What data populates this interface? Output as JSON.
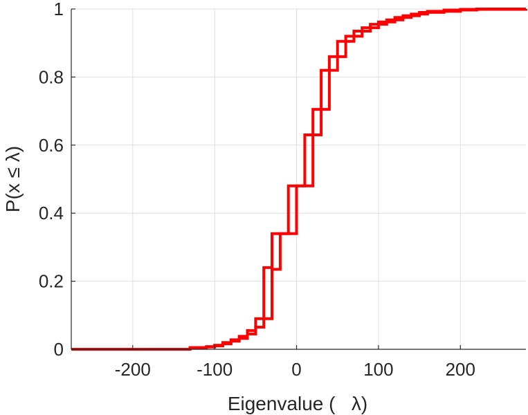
{
  "chart_data": {
    "type": "line",
    "title": "",
    "xlabel": "Eigenvalue (   λ)",
    "ylabel": "P(x ≤ λ)",
    "xlim": [
      -275,
      280
    ],
    "ylim": [
      0,
      1
    ],
    "xticks": [
      -200,
      -100,
      0,
      100,
      200
    ],
    "xtick_labels": [
      "-200",
      "-100",
      "0",
      "100",
      "200"
    ],
    "yticks": [
      0,
      0.2,
      0.4,
      0.6,
      0.8,
      1
    ],
    "ytick_labels": [
      "0",
      "0.2",
      "0.4",
      "0.6",
      "0.8",
      "1"
    ],
    "grid": true,
    "legend": "none",
    "series": [
      {
        "color": "#ff0000",
        "style": "step",
        "x": [
          -275,
          -180,
          -130,
          -110,
          -100,
          -90,
          -80,
          -70,
          -60,
          -50,
          -40,
          -30,
          -10,
          10,
          30,
          50,
          70,
          90,
          110,
          130,
          150,
          180,
          220,
          280
        ],
        "y": [
          0.0,
          0.0,
          0.005,
          0.008,
          0.012,
          0.02,
          0.028,
          0.038,
          0.055,
          0.09,
          0.24,
          0.34,
          0.48,
          0.63,
          0.82,
          0.905,
          0.935,
          0.955,
          0.968,
          0.98,
          0.99,
          0.997,
          1.0,
          1.0
        ]
      },
      {
        "color": "#ff0000",
        "style": "step",
        "x": [
          -275,
          -180,
          -130,
          -110,
          -100,
          -90,
          -80,
          -70,
          -60,
          -50,
          -40,
          -30,
          -20,
          0,
          20,
          40,
          60,
          80,
          100,
          120,
          140,
          160,
          200,
          280
        ],
        "y": [
          0.0,
          0.0,
          0.004,
          0.007,
          0.01,
          0.016,
          0.024,
          0.032,
          0.045,
          0.065,
          0.09,
          0.235,
          0.34,
          0.48,
          0.705,
          0.86,
          0.92,
          0.945,
          0.962,
          0.975,
          0.985,
          0.993,
          0.999,
          1.0
        ]
      }
    ]
  }
}
